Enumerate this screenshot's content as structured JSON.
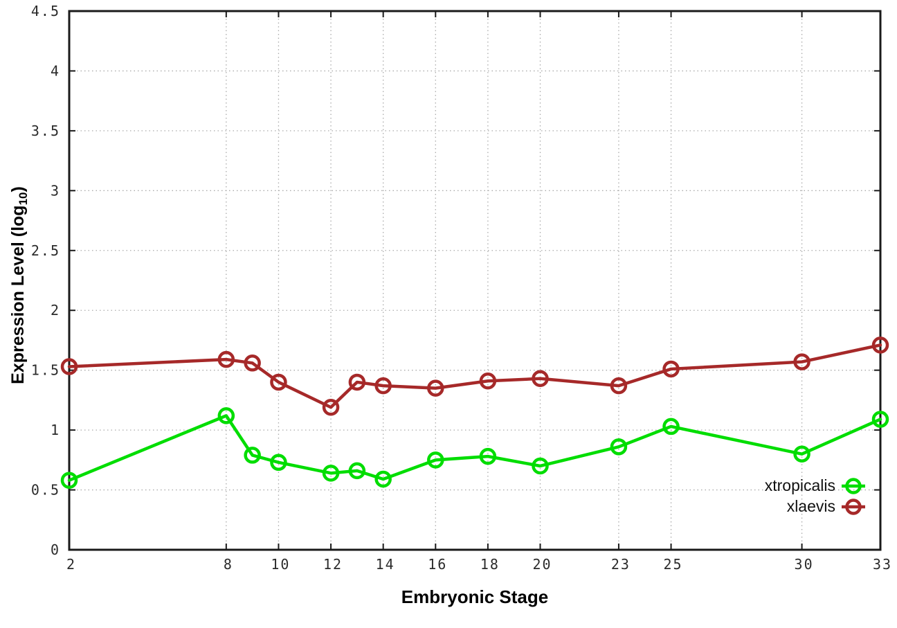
{
  "figure": {
    "xlabel": "Embryonic Stage",
    "ylabel_prefix": "Expression Level (log",
    "ylabel_sub": "10",
    "ylabel_suffix": ")"
  },
  "chart_data": {
    "type": "line",
    "title": "",
    "xlabel": "Embryonic Stage",
    "ylabel": "Expression Level (log10)",
    "x": [
      2,
      8,
      9,
      10,
      12,
      13,
      14,
      16,
      18,
      20,
      23,
      25,
      30,
      33
    ],
    "x_tick_labels": [
      2,
      8,
      10,
      12,
      14,
      16,
      18,
      20,
      23,
      25,
      30,
      33
    ],
    "y_ticks": [
      0,
      0.5,
      1,
      1.5,
      2,
      2.5,
      3,
      3.5,
      4,
      4.5
    ],
    "xlim": [
      2,
      33
    ],
    "ylim": [
      0,
      4.5
    ],
    "grid": true,
    "grid_style": "dotted",
    "legend_position": "inside-bottom-right",
    "series": [
      {
        "name": "xtropicalis",
        "color": "#00dd00",
        "marker": "open-circle",
        "values": [
          0.58,
          1.12,
          0.79,
          0.73,
          0.64,
          0.66,
          0.59,
          0.75,
          0.78,
          0.7,
          0.86,
          1.03,
          0.8,
          1.09
        ]
      },
      {
        "name": "xlaevis",
        "color": "#a62929",
        "marker": "open-circle",
        "values": [
          1.53,
          1.59,
          1.56,
          1.4,
          1.19,
          1.4,
          1.37,
          1.35,
          1.41,
          1.43,
          1.37,
          1.51,
          1.57,
          1.71
        ]
      }
    ],
    "colors": {
      "border": "#1a1a1a",
      "grid": "#aaaaaa",
      "tick_label": "#2b2b2b",
      "axis_title": "#000000"
    }
  }
}
